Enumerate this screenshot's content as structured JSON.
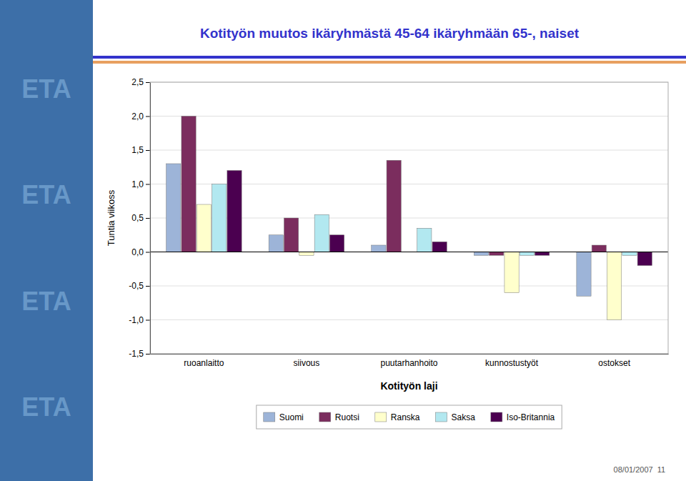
{
  "chart_data": {
    "type": "bar",
    "title": "Kotityön muutos ikäryhmästä 45-64 ikäryhmään 65-, naiset",
    "x_label": "Kotityön laji",
    "y_label": "Tuntia viikoss",
    "categories": [
      "ruoanlaitto",
      "siivous",
      "puutarhanhoito",
      "kunnostustyöt",
      "ostokset"
    ],
    "series": [
      {
        "name": "Suomi",
        "color": "#9db4d8",
        "values": [
          1.3,
          0.25,
          0.1,
          -0.05,
          -0.65
        ]
      },
      {
        "name": "Ruotsi",
        "color": "#7b2d5e",
        "values": [
          2.0,
          0.5,
          1.35,
          -0.05,
          0.1
        ]
      },
      {
        "name": "Ranska",
        "color": "#ffffcc",
        "values": [
          0.7,
          -0.05,
          0.0,
          -0.6,
          -1.0
        ]
      },
      {
        "name": "Saksa",
        "color": "#b2e8f0",
        "values": [
          1.0,
          0.55,
          0.35,
          -0.05,
          -0.05
        ]
      },
      {
        "name": "Iso-Britannia",
        "color": "#4b0050",
        "values": [
          1.2,
          0.25,
          0.15,
          -0.05,
          -0.2
        ]
      }
    ],
    "ylim": [
      -1.5,
      2.5
    ],
    "yticks": [
      {
        "value": -1.5,
        "label": "-1,5"
      },
      {
        "value": -1.0,
        "label": "-1,0"
      },
      {
        "value": -0.5,
        "label": "-0,5"
      },
      {
        "value": 0.0,
        "label": "0,0"
      },
      {
        "value": 0.5,
        "label": "0,5"
      },
      {
        "value": 1.0,
        "label": "1,0"
      },
      {
        "value": 1.5,
        "label": "1,5"
      },
      {
        "value": 2.0,
        "label": "2,0"
      },
      {
        "value": 2.5,
        "label": "2,5"
      }
    ],
    "grid": true,
    "legend": "bottom",
    "annotations": [
      "ETA",
      "ETA",
      "ETA",
      "ETA",
      "08/01/2007  11"
    ]
  }
}
